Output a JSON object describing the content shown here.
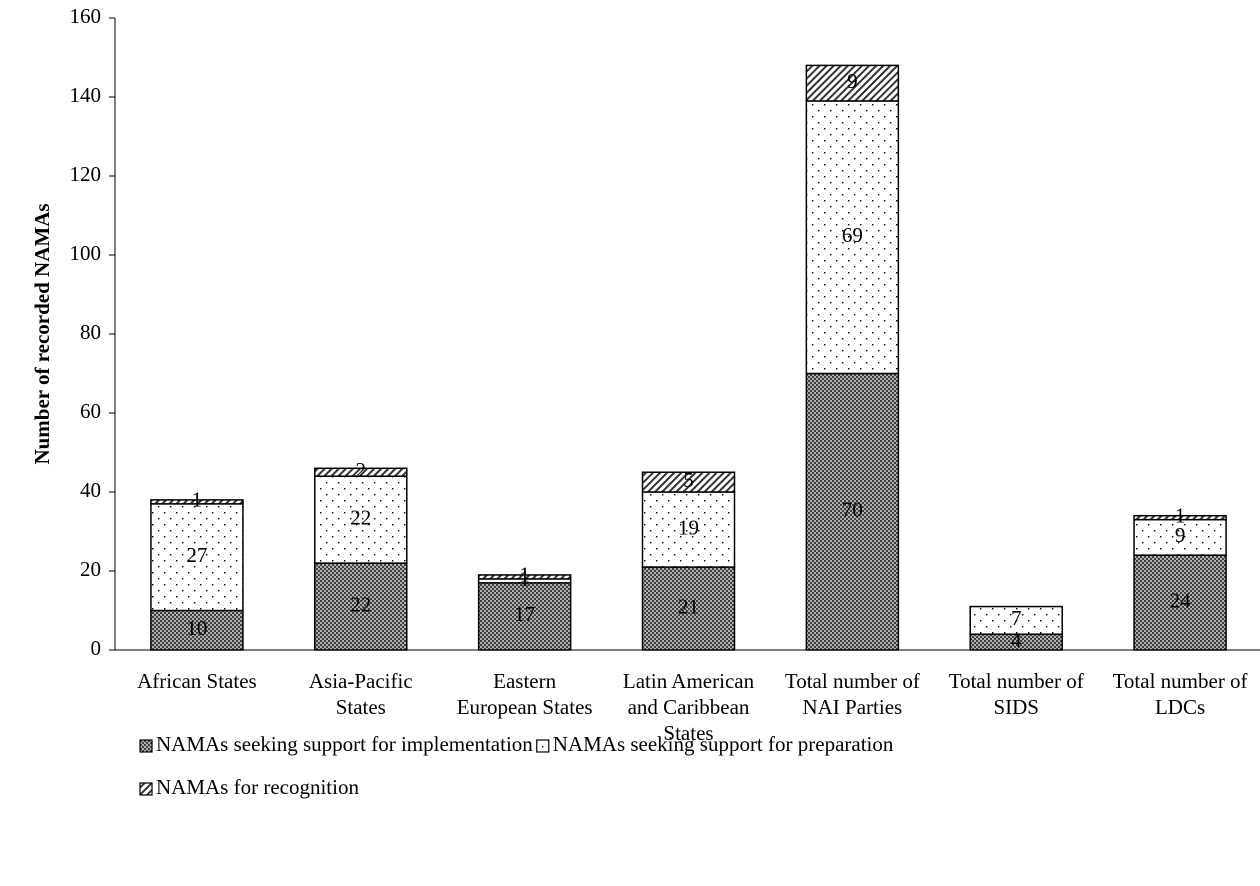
{
  "chart_data": {
    "type": "stacked-bar",
    "y_label": "Number of recorded NAMAs",
    "categories": [
      "African States",
      "Asia-Pacific States",
      "Eastern European States",
      "Latin American and Caribbean States",
      "Total number of NAI Parties",
      "Total number of SIDS",
      "Total number of LDCs"
    ],
    "series": [
      {
        "name": "NAMAs seeking support for implementation",
        "color": "#8c8c8c",
        "pattern": "checker",
        "values": [
          10,
          22,
          17,
          21,
          70,
          4,
          24
        ]
      },
      {
        "name": "NAMAs seeking support for preparation",
        "color": "#ffffff",
        "pattern": "dots",
        "values": [
          27,
          22,
          1,
          19,
          69,
          7,
          9
        ]
      },
      {
        "name": "NAMAs for recognition",
        "color": "#ffffff",
        "pattern": "hatch",
        "values": [
          1,
          2,
          1,
          5,
          9,
          null,
          1
        ]
      }
    ],
    "ylim": [
      0,
      160
    ],
    "yticks": [
      0,
      20,
      40,
      60,
      80,
      100,
      120,
      140,
      160
    ],
    "legend": "bottom"
  }
}
